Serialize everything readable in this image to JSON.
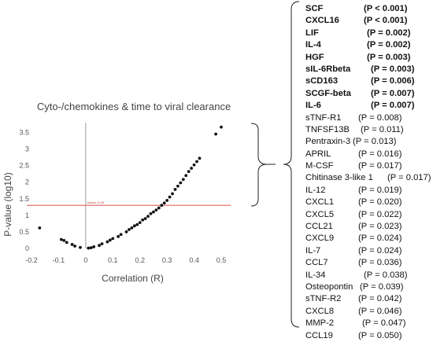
{
  "chart_data": {
    "type": "scatter",
    "title": "Cyto-/chemokines & time to viral clearance",
    "xlabel": "Correlation (R)",
    "ylabel": "P-value (log10)",
    "xlim": [
      -0.2,
      0.5
    ],
    "ylim": [
      0,
      3.7
    ],
    "xticks": [
      "-0.2",
      "-0.1",
      "0",
      "0.1",
      "0.2",
      "0.3",
      "0.4",
      "0.5"
    ],
    "yticks": [
      "0",
      "0.5",
      "1",
      "1.5",
      "2",
      "2.5",
      "3",
      "3.5"
    ],
    "threshold_line": {
      "y": 1.3,
      "color": "#e06060",
      "label": "Iration: 0.05"
    },
    "zero_line": {
      "x": 0,
      "color": "#999999"
    },
    "grid": false,
    "points": [
      {
        "x": -0.17,
        "y": 0.62
      },
      {
        "x": -0.09,
        "y": 0.27
      },
      {
        "x": -0.08,
        "y": 0.24
      },
      {
        "x": -0.07,
        "y": 0.18
      },
      {
        "x": -0.05,
        "y": 0.12
      },
      {
        "x": -0.04,
        "y": 0.07
      },
      {
        "x": -0.02,
        "y": 0.03
      },
      {
        "x": 0.01,
        "y": 0.01
      },
      {
        "x": 0.02,
        "y": 0.02
      },
      {
        "x": 0.03,
        "y": 0.05
      },
      {
        "x": 0.05,
        "y": 0.09
      },
      {
        "x": 0.06,
        "y": 0.14
      },
      {
        "x": 0.08,
        "y": 0.2
      },
      {
        "x": 0.09,
        "y": 0.25
      },
      {
        "x": 0.1,
        "y": 0.3
      },
      {
        "x": 0.12,
        "y": 0.36
      },
      {
        "x": 0.13,
        "y": 0.42
      },
      {
        "x": 0.15,
        "y": 0.5
      },
      {
        "x": 0.16,
        "y": 0.57
      },
      {
        "x": 0.17,
        "y": 0.62
      },
      {
        "x": 0.18,
        "y": 0.68
      },
      {
        "x": 0.19,
        "y": 0.72
      },
      {
        "x": 0.2,
        "y": 0.78
      },
      {
        "x": 0.21,
        "y": 0.86
      },
      {
        "x": 0.22,
        "y": 0.9
      },
      {
        "x": 0.23,
        "y": 0.97
      },
      {
        "x": 0.24,
        "y": 1.05
      },
      {
        "x": 0.25,
        "y": 1.1
      },
      {
        "x": 0.26,
        "y": 1.16
      },
      {
        "x": 0.27,
        "y": 1.22
      },
      {
        "x": 0.28,
        "y": 1.3
      },
      {
        "x": 0.29,
        "y": 1.37
      },
      {
        "x": 0.3,
        "y": 1.45
      },
      {
        "x": 0.31,
        "y": 1.55
      },
      {
        "x": 0.32,
        "y": 1.65
      },
      {
        "x": 0.33,
        "y": 1.78
      },
      {
        "x": 0.34,
        "y": 1.88
      },
      {
        "x": 0.35,
        "y": 1.98
      },
      {
        "x": 0.36,
        "y": 2.08
      },
      {
        "x": 0.37,
        "y": 2.2
      },
      {
        "x": 0.38,
        "y": 2.32
      },
      {
        "x": 0.39,
        "y": 2.42
      },
      {
        "x": 0.4,
        "y": 2.52
      },
      {
        "x": 0.41,
        "y": 2.62
      },
      {
        "x": 0.42,
        "y": 2.72
      },
      {
        "x": 0.48,
        "y": 3.45
      },
      {
        "x": 0.5,
        "y": 3.66
      }
    ]
  },
  "cytokines": [
    {
      "name": "SCF",
      "p": "(P < 0.001)",
      "bold": true
    },
    {
      "name": "CXCL16",
      "p": "(P < 0.001)",
      "bold": true
    },
    {
      "name": "LIF",
      "p": "(P = 0.002)",
      "bold": true
    },
    {
      "name": "IL-4",
      "p": "(P = 0.002)",
      "bold": true
    },
    {
      "name": "HGF",
      "p": "(P = 0.003)",
      "bold": true
    },
    {
      "name": "sIL-6Rbeta",
      "p": "(P = 0.003)",
      "bold": true
    },
    {
      "name": "sCD163",
      "p": "(P = 0.006)",
      "bold": true
    },
    {
      "name": "SCGF-beta",
      "p": "(P = 0.007)",
      "bold": true
    },
    {
      "name": "IL-6",
      "p": "(P = 0.007)",
      "bold": true
    },
    {
      "name": "sTNF-R1",
      "p": "(P = 0.008)",
      "bold": false
    },
    {
      "name": "TNFSF13B",
      "p": "(P = 0.011)",
      "bold": false
    },
    {
      "name": "Pentraxin-3",
      "p": "(P = 0.013)",
      "bold": false
    },
    {
      "name": "APRIL",
      "p": "(P = 0.016)",
      "bold": false
    },
    {
      "name": "M-CSF",
      "p": "(P = 0.017)",
      "bold": false
    },
    {
      "name": "Chitinase 3-like 1",
      "p": "(P = 0.017)",
      "bold": false
    },
    {
      "name": "IL-12",
      "p": "(P = 0.019)",
      "bold": false
    },
    {
      "name": "CXCL1",
      "p": "(P = 0.020)",
      "bold": false
    },
    {
      "name": "CXCL5",
      "p": "(P = 0.022)",
      "bold": false
    },
    {
      "name": "CCL21",
      "p": "(P = 0.023)",
      "bold": false
    },
    {
      "name": "CXCL9",
      "p": "(P = 0.024)",
      "bold": false
    },
    {
      "name": "IL-7",
      "p": "(P = 0.024)",
      "bold": false
    },
    {
      "name": "CCL7",
      "p": "(P = 0.036)",
      "bold": false
    },
    {
      "name": "IL-34",
      "p": "(P = 0.038)",
      "bold": false
    },
    {
      "name": "Osteopontin",
      "p": "(P = 0.039)",
      "bold": false
    },
    {
      "name": "sTNF-R2",
      "p": "(P = 0.042)",
      "bold": false
    },
    {
      "name": "CXCL8",
      "p": "(P = 0.046)",
      "bold": false
    },
    {
      "name": "MMP-2",
      "p": "(P = 0.047)",
      "bold": false
    },
    {
      "name": "CCL19",
      "p": "(P = 0.050)",
      "bold": false
    }
  ]
}
